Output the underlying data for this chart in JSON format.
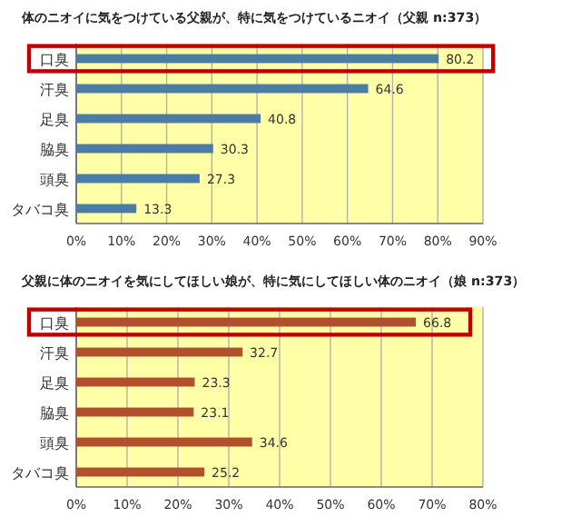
{
  "chart_data": [
    {
      "type": "bar",
      "orientation": "horizontal",
      "title": "体のニオイに気をつけている父親が、特に気をつけているニオイ（父親 n:373）",
      "categories": [
        "口臭",
        "汗臭",
        "足臭",
        "脇臭",
        "頭臭",
        "タバコ臭"
      ],
      "values": [
        80.2,
        64.6,
        40.8,
        30.3,
        27.3,
        13.3
      ],
      "color": "#4a7ca6",
      "data_labels": true,
      "xlim": [
        0,
        90
      ],
      "xticks": [
        {
          "value": 0,
          "label": "0%"
        },
        {
          "value": 10,
          "label": "10%"
        },
        {
          "value": 20,
          "label": "20%"
        },
        {
          "value": 30,
          "label": "30%"
        },
        {
          "value": 40,
          "label": "40%"
        },
        {
          "value": 50,
          "label": "50%"
        },
        {
          "value": 60,
          "label": "60%"
        },
        {
          "value": 70,
          "label": "70%"
        },
        {
          "value": 80,
          "label": "80%"
        },
        {
          "value": 90,
          "label": "90%"
        }
      ],
      "grid": "x"
    },
    {
      "type": "bar",
      "orientation": "horizontal",
      "title": "父親に体のニオイを気にしてほしい娘が、特に気にしてほしい体のニオイ（娘 n:373）",
      "categories": [
        "口臭",
        "汗臭",
        "足臭",
        "脇臭",
        "頭臭",
        "タバコ臭"
      ],
      "values": [
        66.8,
        32.7,
        23.3,
        23.1,
        34.6,
        25.2
      ],
      "color": "#b0502c",
      "data_labels": true,
      "xlim": [
        0,
        80
      ],
      "xticks": [
        {
          "value": 0,
          "label": "0%"
        },
        {
          "value": 10,
          "label": "10%"
        },
        {
          "value": 20,
          "label": "20%"
        },
        {
          "value": 30,
          "label": "30%"
        },
        {
          "value": 40,
          "label": "40%"
        },
        {
          "value": 50,
          "label": "50%"
        },
        {
          "value": 60,
          "label": "60%"
        },
        {
          "value": 70,
          "label": "70%"
        },
        {
          "value": 80,
          "label": "80%"
        }
      ],
      "grid": "x"
    }
  ]
}
